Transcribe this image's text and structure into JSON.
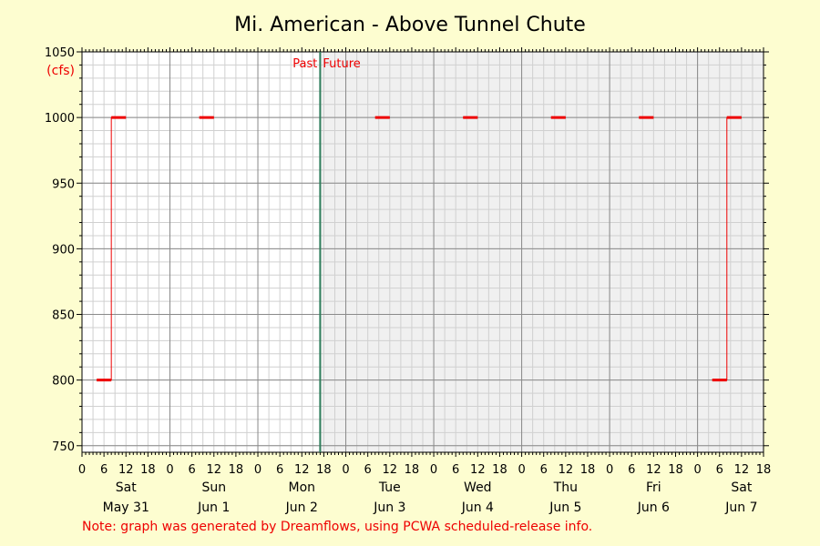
{
  "chart_data": {
    "type": "line",
    "title": "Mi. American - Above Tunnel Chute",
    "unit_label": "(cfs)",
    "ylim": [
      745,
      1050
    ],
    "y_ticks": [
      750,
      800,
      850,
      900,
      950,
      1000,
      1050
    ],
    "xlim_hours": [
      0,
      186
    ],
    "hour_tick_labels": [
      "0",
      "6",
      "12",
      "18"
    ],
    "days": [
      {
        "weekday": "Sat",
        "date": "May 31"
      },
      {
        "weekday": "Sun",
        "date": "Jun 1"
      },
      {
        "weekday": "Mon",
        "date": "Jun 2"
      },
      {
        "weekday": "Tue",
        "date": "Jun 3"
      },
      {
        "weekday": "Wed",
        "date": "Jun 4"
      },
      {
        "weekday": "Thu",
        "date": "Jun 5"
      },
      {
        "weekday": "Fri",
        "date": "Jun 6"
      },
      {
        "weekday": "Sat",
        "date": "Jun 7"
      }
    ],
    "now_hour": 65,
    "past_label": "Past",
    "future_label": "Future",
    "series": [
      {
        "segments": [
          {
            "x": [
              4,
              8,
              8,
              12
            ],
            "y": [
              800,
              800,
              1000,
              1000
            ]
          },
          {
            "x": [
              32,
              36
            ],
            "y": [
              1000,
              1000
            ]
          },
          {
            "x": [
              80,
              84
            ],
            "y": [
              1000,
              1000
            ]
          },
          {
            "x": [
              104,
              108
            ],
            "y": [
              1000,
              1000
            ]
          },
          {
            "x": [
              128,
              132
            ],
            "y": [
              1000,
              1000
            ]
          },
          {
            "x": [
              152,
              156
            ],
            "y": [
              1000,
              1000
            ]
          },
          {
            "x": [
              172,
              176,
              176,
              180
            ],
            "y": [
              800,
              800,
              1000,
              1000
            ]
          }
        ]
      }
    ],
    "colors": {
      "series": "#ee0000",
      "now_line": "#2e7d5b",
      "future_bg": "#f0f0f0",
      "note": "#ee0000"
    }
  },
  "note": "Note: graph was generated by Dreamflows, using PCWA scheduled-release info."
}
